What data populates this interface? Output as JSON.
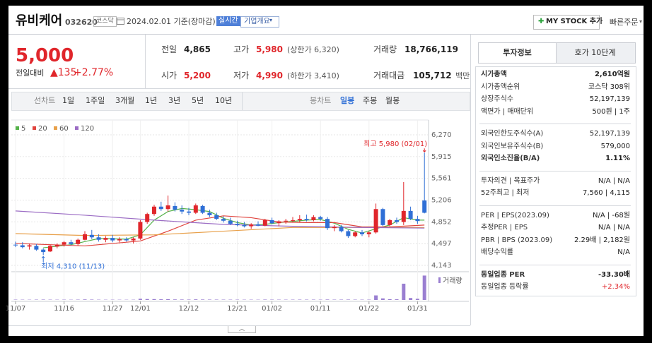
{
  "header": {
    "name": "유비케어",
    "code": "032620",
    "market": "코스닥",
    "date": "2024.02.01 기준(장마감)",
    "realtime": "실시간",
    "company_info": "기업개요",
    "my_stock": "MY STOCK 추가",
    "quick_order": "빠른주문"
  },
  "price": {
    "current": "5,000",
    "change_label": "전일대비",
    "change": "▲135",
    "rate": "+2.77%"
  },
  "summary": [
    {
      "label": "전일",
      "value": "4,865"
    },
    {
      "label": "고가",
      "value": "5,980",
      "extra": "(상한가 6,320)",
      "color": "red"
    },
    {
      "label": "거래량",
      "value": "18,766,119"
    },
    {
      "label": "시가",
      "value": "5,200",
      "color": "red"
    },
    {
      "label": "저가",
      "value": "4,990",
      "extra": "(하한가 3,410)",
      "color": "red"
    },
    {
      "label": "거래대금",
      "value": "105,712",
      "extra": "백만"
    }
  ],
  "periods": {
    "line_label": "선차트",
    "line": [
      "1일",
      "1주일",
      "3개월",
      "1년",
      "3년",
      "5년",
      "10년"
    ],
    "candle_label": "봉차트",
    "candle": [
      "일봉",
      "주봉",
      "월봉"
    ],
    "selected_candle": 0
  },
  "info_tabs": [
    "투자정보",
    "호가 10단계"
  ],
  "info_groups": [
    [
      {
        "label": "시가총액",
        "value": "2,610억원",
        "bold": true
      },
      {
        "label": "시가총액순위",
        "value": "코스닥 308위"
      },
      {
        "label": "상장주식수",
        "value": "52,197,139"
      },
      {
        "label": "액면가 | 매매단위",
        "value": "500원 | 1주"
      }
    ],
    [
      {
        "label": "외국인한도주식수(A)",
        "value": "52,197,139"
      },
      {
        "label": "외국인보유주식수(B)",
        "value": "579,000"
      },
      {
        "label": "외국인소진율(B/A)",
        "value": "1.11%",
        "bold": true
      }
    ],
    [
      {
        "label": "투자의견 | 목표주가",
        "value": "N/A | N/A"
      },
      {
        "label": "52주최고 | 최저",
        "value": "7,560 | 4,115"
      }
    ],
    [
      {
        "label": "PER | EPS(2023.09)",
        "value": "N/A | -68원"
      },
      {
        "label": "추정PER | EPS",
        "value": "N/A | N/A"
      },
      {
        "label": "PBR | BPS (2023.09)",
        "value": "2.29배 | 2,182원"
      },
      {
        "label": "배당수익률",
        "value": "N/A"
      }
    ],
    [
      {
        "label": "동일업종 PER",
        "value": "-33.30배",
        "bold": true
      },
      {
        "label": "동일업종 등락률",
        "value": "+2.34%",
        "color": "red"
      }
    ]
  ],
  "chart_data": {
    "type": "candlestick",
    "categories": [
      "11/07",
      null,
      null,
      null,
      null,
      null,
      null,
      "11/16",
      null,
      null,
      null,
      null,
      null,
      null,
      "11/27",
      null,
      null,
      null,
      "12/01",
      null,
      null,
      null,
      null,
      null,
      null,
      "12/12",
      null,
      null,
      null,
      null,
      null,
      null,
      "12/21",
      null,
      null,
      null,
      null,
      "01/02",
      null,
      null,
      null,
      null,
      null,
      null,
      "01/11",
      null,
      null,
      null,
      null,
      null,
      null,
      "01/22",
      null,
      null,
      null,
      null,
      null,
      null,
      "01/31",
      null
    ],
    "candles": [
      [
        4480,
        4530,
        4440,
        4470
      ],
      [
        4470,
        4520,
        4420,
        4440
      ],
      [
        4450,
        4500,
        4400,
        4470
      ],
      [
        4460,
        4490,
        4380,
        4400
      ],
      [
        4400,
        4420,
        4310,
        4360
      ],
      [
        4370,
        4480,
        4360,
        4460
      ],
      [
        4450,
        4500,
        4420,
        4480
      ],
      [
        4480,
        4540,
        4450,
        4520
      ],
      [
        4520,
        4560,
        4470,
        4490
      ],
      [
        4490,
        4580,
        4470,
        4560
      ],
      [
        4560,
        4700,
        4550,
        4650
      ],
      [
        4640,
        4720,
        4570,
        4600
      ],
      [
        4600,
        4650,
        4530,
        4560
      ],
      [
        4560,
        4620,
        4520,
        4590
      ],
      [
        4590,
        4640,
        4520,
        4550
      ],
      [
        4550,
        4600,
        4520,
        4570
      ],
      [
        4570,
        4600,
        4530,
        4550
      ],
      [
        4550,
        4600,
        4500,
        4580
      ],
      [
        4580,
        4880,
        4560,
        4850
      ],
      [
        4850,
        5000,
        4820,
        4980
      ],
      [
        4980,
        5130,
        4950,
        5100
      ],
      [
        5100,
        5180,
        5030,
        5060
      ],
      [
        5060,
        5280,
        5020,
        5120
      ],
      [
        5110,
        5170,
        5020,
        5050
      ],
      [
        5050,
        5120,
        4980,
        5020
      ],
      [
        5020,
        5080,
        4960,
        5000
      ],
      [
        5000,
        5150,
        4980,
        5120
      ],
      [
        5110,
        5130,
        4980,
        5000
      ],
      [
        5000,
        5050,
        4930,
        4960
      ],
      [
        4960,
        5000,
        4880,
        4900
      ],
      [
        4900,
        4940,
        4840,
        4870
      ],
      [
        4870,
        4920,
        4800,
        4820
      ],
      [
        4820,
        4870,
        4780,
        4800
      ],
      [
        4800,
        4850,
        4760,
        4780
      ],
      [
        4780,
        4830,
        4740,
        4810
      ],
      [
        4810,
        4860,
        4780,
        4790
      ],
      [
        4790,
        4900,
        4780,
        4880
      ],
      [
        4880,
        4920,
        4810,
        4830
      ],
      [
        4830,
        4880,
        4780,
        4860
      ],
      [
        4860,
        4900,
        4820,
        4870
      ],
      [
        4870,
        4930,
        4840,
        4880
      ],
      [
        4880,
        4960,
        4850,
        4900
      ],
      [
        4900,
        4970,
        4860,
        4880
      ],
      [
        4880,
        4960,
        4860,
        4930
      ],
      [
        4930,
        4950,
        4870,
        4900
      ],
      [
        4900,
        4930,
        4720,
        4750
      ],
      [
        4750,
        4800,
        4700,
        4770
      ],
      [
        4770,
        4800,
        4680,
        4700
      ],
      [
        4700,
        4720,
        4590,
        4620
      ],
      [
        4620,
        4700,
        4600,
        4680
      ],
      [
        4680,
        4720,
        4620,
        4650
      ],
      [
        4650,
        4700,
        4600,
        4680
      ],
      [
        4680,
        5150,
        4660,
        5060
      ],
      [
        5060,
        5080,
        4780,
        4800
      ],
      [
        4800,
        4900,
        4780,
        4880
      ],
      [
        4880,
        4920,
        4820,
        4850
      ],
      [
        4850,
        5500,
        4800,
        5030
      ],
      [
        5030,
        5100,
        4880,
        4900
      ],
      [
        4900,
        4950,
        4820,
        4865
      ],
      [
        5200,
        5980,
        4990,
        5000
      ]
    ],
    "volume": [
      250000,
      220000,
      200000,
      260000,
      300000,
      240000,
      210000,
      230000,
      200000,
      260000,
      400000,
      300000,
      220000,
      200000,
      210000,
      190000,
      180000,
      200000,
      900000,
      700000,
      650000,
      500000,
      600000,
      400000,
      350000,
      300000,
      450000,
      350000,
      300000,
      280000,
      260000,
      250000,
      240000,
      220000,
      230000,
      210000,
      300000,
      260000,
      240000,
      230000,
      250000,
      280000,
      260000,
      270000,
      240000,
      350000,
      260000,
      280000,
      320000,
      260000,
      240000,
      250000,
      3500000,
      1200000,
      600000,
      500000,
      12500000,
      1500000,
      900000,
      18766119
    ],
    "volume_name": "거래량",
    "vol_lim": [
      0,
      19000000
    ],
    "series": [
      {
        "name": "5",
        "color": "#55b24a",
        "x": [
          4,
          8,
          12,
          16,
          18,
          20,
          22,
          24,
          26,
          28,
          30,
          32,
          34,
          36,
          38,
          40,
          42,
          44,
          46,
          48,
          50,
          52,
          54,
          56,
          58,
          59
        ],
        "values": [
          4430,
          4480,
          4580,
          4570,
          4640,
          4880,
          5020,
          5070,
          5050,
          5020,
          4910,
          4840,
          4800,
          4810,
          4840,
          4860,
          4880,
          4890,
          4830,
          4730,
          4670,
          4740,
          4800,
          4920,
          4880,
          4880
        ]
      },
      {
        "name": "20",
        "color": "#e0443e",
        "x": [
          0,
          10,
          18,
          22,
          26,
          30,
          34,
          38,
          42,
          46,
          50,
          54,
          59
        ],
        "values": [
          4500,
          4460,
          4540,
          4700,
          4880,
          4950,
          4920,
          4850,
          4840,
          4840,
          4770,
          4770,
          4800
        ]
      },
      {
        "name": "60",
        "color": "#e8a04a",
        "x": [
          0,
          10,
          20,
          30,
          40,
          50,
          59
        ],
        "values": [
          4660,
          4630,
          4640,
          4700,
          4760,
          4760,
          4760
        ]
      },
      {
        "name": "120",
        "color": "#9b6cc4",
        "x": [
          0,
          10,
          20,
          30,
          40,
          50,
          59
        ],
        "values": [
          5030,
          4960,
          4880,
          4810,
          4780,
          4760,
          4750
        ]
      }
    ],
    "ylim": [
      4143,
      6270
    ],
    "yticks": [
      {
        "value": 6270,
        "label": "6,270"
      },
      {
        "value": 5915,
        "label": "5,915"
      },
      {
        "value": 5561,
        "label": "5,561"
      },
      {
        "value": 5206,
        "label": "5,206"
      },
      {
        "value": 4852,
        "label": "4,852"
      },
      {
        "value": 4497,
        "label": "4,497"
      },
      {
        "value": 4143,
        "label": "4,143"
      }
    ],
    "grid": true,
    "up_color": "#e0262b",
    "down_color": "#2f6fd6",
    "volume_color": "#9a7fd1",
    "annotations": [
      {
        "text": "최고 5,980 (02/01)",
        "index": 59,
        "value": 5980,
        "color": "#e0262b"
      },
      {
        "text": "최저 4,310 (11/13)",
        "index": 4,
        "value": 4310,
        "color": "#2f6fd6"
      }
    ]
  }
}
